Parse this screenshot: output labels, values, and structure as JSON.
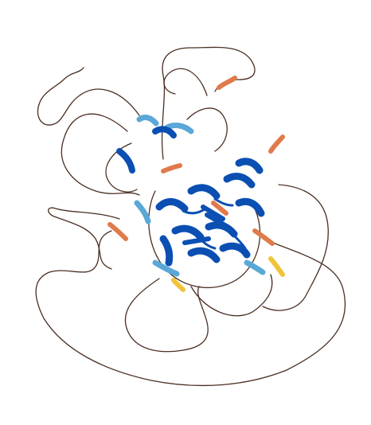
{
  "image": {
    "kind": "protein-structure-cartoon",
    "background_color": "#ffffff"
  },
  "palette": {
    "very_high_confidence": "#0b4fb3",
    "confident": "#5aa8d8",
    "low_confidence": "#f0c33a",
    "very_low_confidence": "#e07a4a",
    "disordered_loop": "#4a2e22"
  }
}
